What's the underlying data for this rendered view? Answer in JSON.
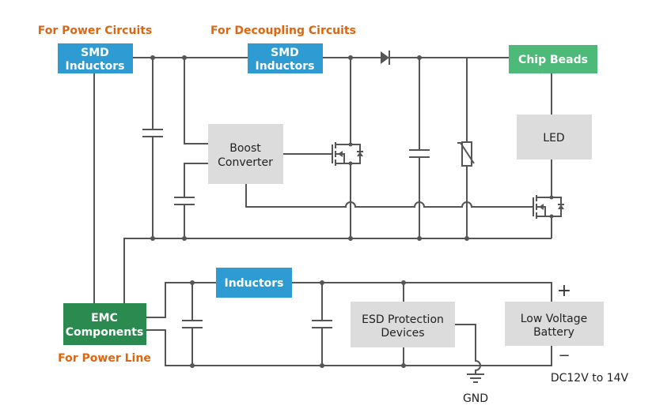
{
  "labels": {
    "for_power_circuits": "For Power Circuits",
    "for_decoupling_circuits": "For Decoupling Circuits",
    "for_power_line": "For Power Line"
  },
  "blocks": {
    "smd_inductors_1": [
      "SMD",
      "Inductors"
    ],
    "smd_inductors_2": [
      "SMD",
      "Inductors"
    ],
    "chip_beads": "Chip Beads",
    "boost_converter": [
      "Boost",
      "Converter"
    ],
    "led": "LED",
    "emc_components": [
      "EMC",
      "Components"
    ],
    "inductors": "Inductors",
    "esd_protection": [
      "ESD Protection",
      "Devices"
    ],
    "battery": [
      "Low Voltage",
      "Battery"
    ]
  },
  "terminals": {
    "plus": "+",
    "minus": "−",
    "gnd": "GND",
    "voltage": "DC12V to 14V"
  },
  "colors": {
    "blue": "#2e9bd2",
    "green_light": "#4dba7a",
    "green_dark": "#2a8a50",
    "gray_block": "#dcdcdc",
    "orange": "#e0650f",
    "wire": "#555555"
  }
}
